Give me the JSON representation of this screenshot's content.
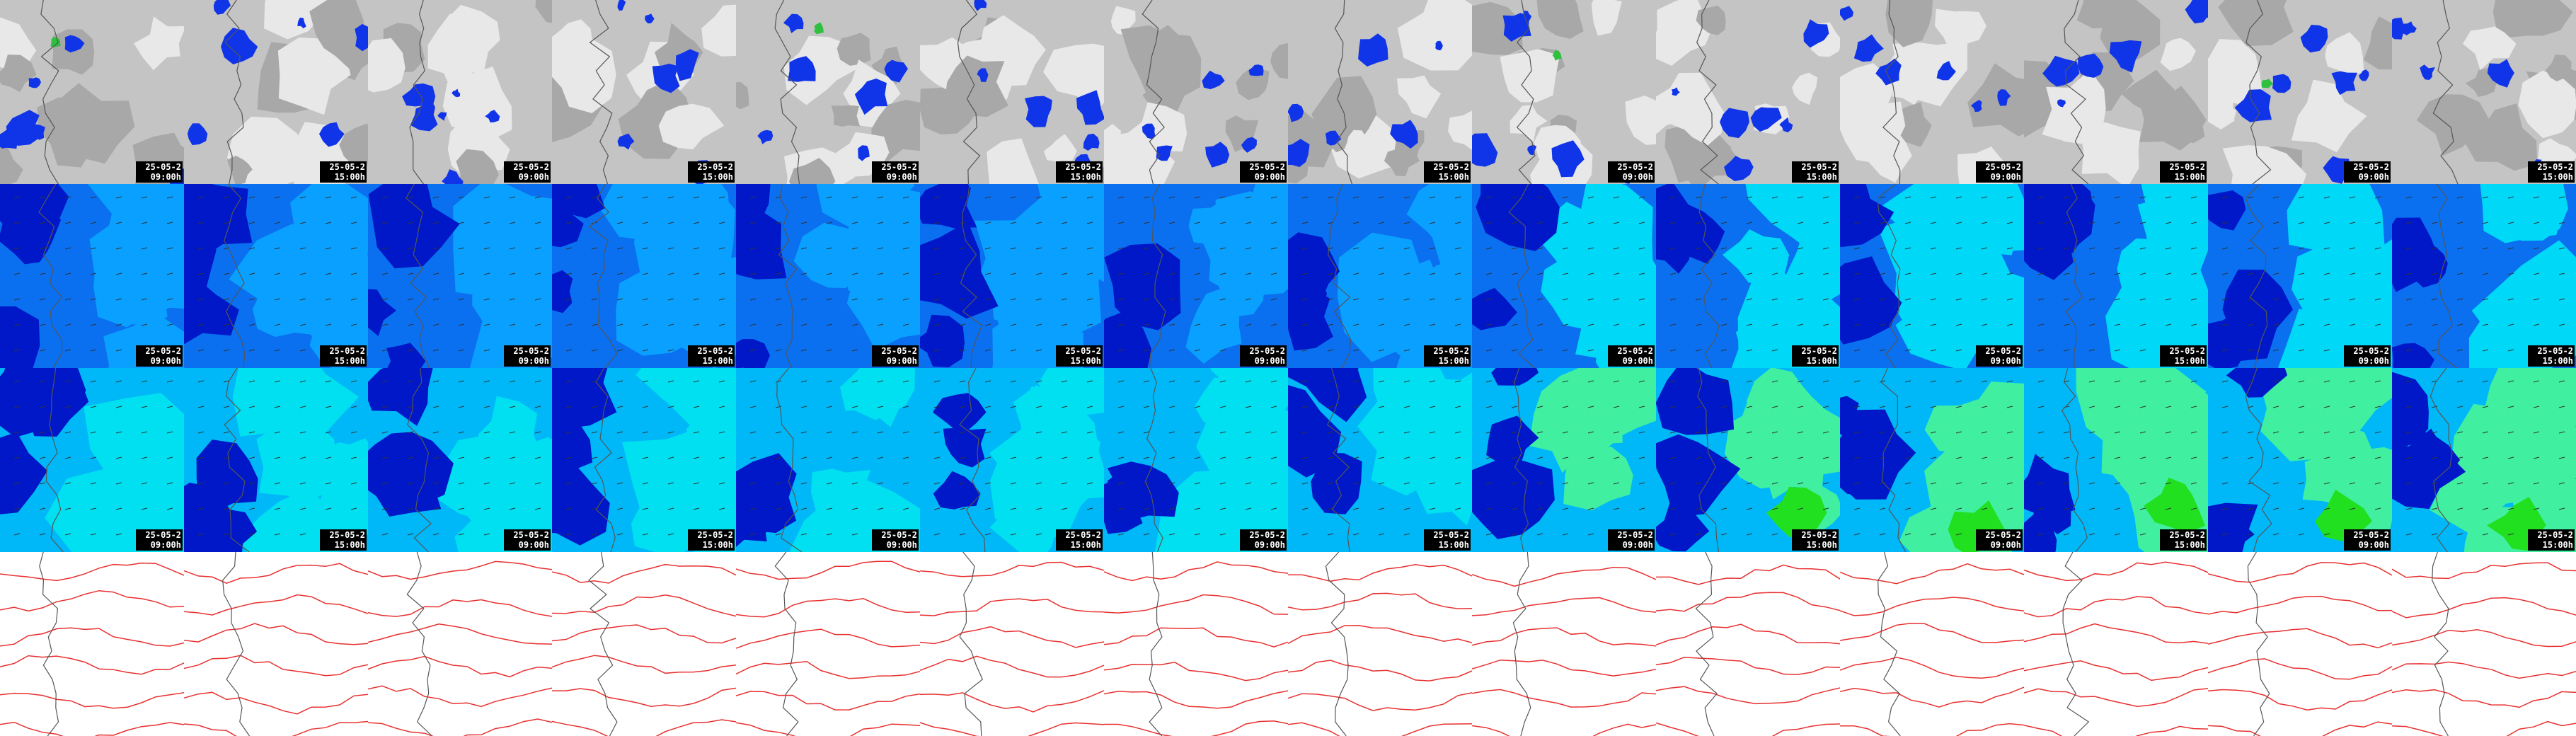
{
  "rows": [
    {
      "cells": [
        {
          "date": "25-05-2",
          "time": "09:00h"
        },
        {
          "date": "25-05-2",
          "time": "15:00h"
        },
        {
          "date": "25-05-2",
          "time": "09:00h"
        },
        {
          "date": "25-05-2",
          "time": "15:00h"
        },
        {
          "date": "25-05-2",
          "time": "09:00h"
        },
        {
          "date": "25-05-2",
          "time": "15:00h"
        },
        {
          "date": "25-05-2",
          "time": "09:00h"
        },
        {
          "date": "25-05-2",
          "time": "15:00h"
        },
        {
          "date": "25-05-2",
          "time": "09:00h"
        },
        {
          "date": "25-05-2",
          "time": "15:00h"
        },
        {
          "date": "25-05-2",
          "time": "09:00h"
        },
        {
          "date": "25-05-2",
          "time": "15:00h"
        },
        {
          "date": "25-05-2",
          "time": "09:00h"
        },
        {
          "date": "25-05-2",
          "time": "15:00h"
        }
      ]
    },
    {
      "cells": [
        {
          "date": "25-05-2",
          "time": "09:00h"
        },
        {
          "date": "25-05-2",
          "time": "15:00h"
        },
        {
          "date": "25-05-2",
          "time": "09:00h"
        },
        {
          "date": "25-05-2",
          "time": "15:00h"
        },
        {
          "date": "25-05-2",
          "time": "09:00h"
        },
        {
          "date": "25-05-2",
          "time": "15:00h"
        },
        {
          "date": "25-05-2",
          "time": "09:00h"
        },
        {
          "date": "25-05-2",
          "time": "15:00h"
        },
        {
          "date": "25-05-2",
          "time": "09:00h"
        },
        {
          "date": "25-05-2",
          "time": "15:00h"
        },
        {
          "date": "25-05-2",
          "time": "09:00h"
        },
        {
          "date": "25-05-2",
          "time": "15:00h"
        },
        {
          "date": "25-05-2",
          "time": "09:00h"
        },
        {
          "date": "25-05-2",
          "time": "15:00h"
        }
      ]
    },
    {
      "cells": [
        {
          "date": "25-05-2",
          "time": "09:00h"
        },
        {
          "date": "25-05-2",
          "time": "15:00h"
        },
        {
          "date": "25-05-2",
          "time": "09:00h"
        },
        {
          "date": "25-05-2",
          "time": "15:00h"
        },
        {
          "date": "25-05-2",
          "time": "09:00h"
        },
        {
          "date": "25-05-2",
          "time": "15:00h"
        },
        {
          "date": "25-05-2",
          "time": "09:00h"
        },
        {
          "date": "25-05-2",
          "time": "15:00h"
        },
        {
          "date": "25-05-2",
          "time": "09:00h"
        },
        {
          "date": "25-05-2",
          "time": "15:00h"
        },
        {
          "date": "25-05-2",
          "time": "09:00h"
        },
        {
          "date": "25-05-2",
          "time": "15:00h"
        },
        {
          "date": "25-05-2",
          "time": "09:00h"
        },
        {
          "date": "25-05-2",
          "time": "15:00h"
        }
      ]
    }
  ]
}
